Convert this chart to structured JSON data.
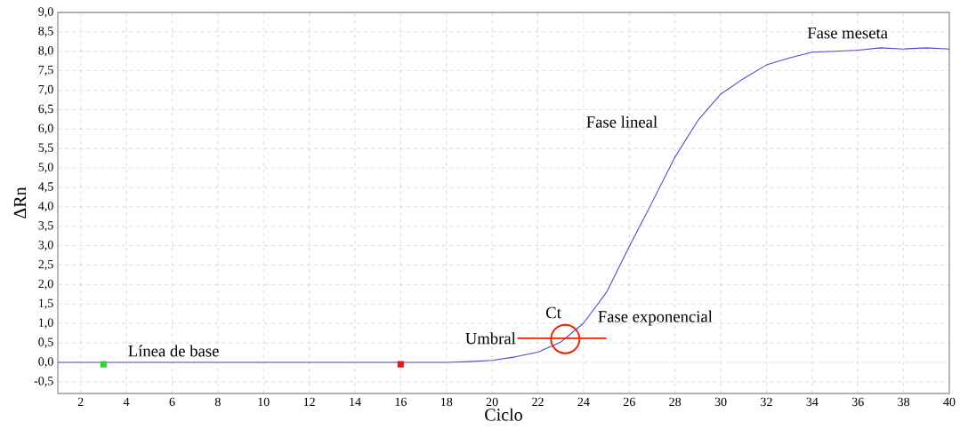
{
  "chart_data": {
    "type": "line",
    "xlabel": "Ciclo",
    "ylabel": "ΔRn",
    "xlim": [
      1,
      40
    ],
    "ylim": [
      -0.8,
      9.0
    ],
    "xticks": [
      2,
      4,
      6,
      8,
      10,
      12,
      14,
      16,
      18,
      20,
      22,
      24,
      26,
      28,
      30,
      32,
      34,
      36,
      38,
      40
    ],
    "yticks": [
      {
        "value": -0.5,
        "label": "-0,5"
      },
      {
        "value": 0,
        "label": "0,0"
      },
      {
        "value": 0.5,
        "label": "0,5"
      },
      {
        "value": 1,
        "label": "1,0"
      },
      {
        "value": 1.5,
        "label": "1,5"
      },
      {
        "value": 2,
        "label": "2,0"
      },
      {
        "value": 2.5,
        "label": "2,5"
      },
      {
        "value": 3,
        "label": "3,0"
      },
      {
        "value": 3.5,
        "label": "3,5"
      },
      {
        "value": 4,
        "label": "4,0"
      },
      {
        "value": 4.5,
        "label": "4,5"
      },
      {
        "value": 5,
        "label": "5,0"
      },
      {
        "value": 5.5,
        "label": "5,5"
      },
      {
        "value": 6,
        "label": "6,0"
      },
      {
        "value": 6.5,
        "label": "6,5"
      },
      {
        "value": 7,
        "label": "7,0"
      },
      {
        "value": 7.5,
        "label": "7,5"
      },
      {
        "value": 8,
        "label": "8,0"
      },
      {
        "value": 8.5,
        "label": "8,5"
      },
      {
        "value": 9,
        "label": "9,0"
      }
    ],
    "grid": true,
    "x": [
      1,
      2,
      3,
      4,
      5,
      6,
      7,
      8,
      9,
      10,
      11,
      12,
      13,
      14,
      15,
      16,
      17,
      18,
      19,
      20,
      21,
      22,
      23,
      24,
      25,
      26,
      27,
      28,
      29,
      30,
      31,
      32,
      33,
      34,
      35,
      36,
      37,
      38,
      39,
      40
    ],
    "series": [
      {
        "color": "#4b4bcc",
        "marker": "none",
        "values": [
          0,
          0,
          0,
          0,
          0,
          0,
          0,
          0,
          0,
          0,
          0,
          0,
          0,
          0,
          0,
          0,
          0,
          0,
          0.02,
          0.05,
          0.14,
          0.26,
          0.52,
          1.01,
          1.8,
          2.98,
          4.12,
          5.28,
          6.22,
          6.9,
          7.3,
          7.65,
          7.83,
          7.98,
          8.0,
          8.03,
          8.09,
          8.06,
          8.09,
          8.06
        ]
      },
      {
        "type": "line",
        "name": "Umbral",
        "color": "#ee2200",
        "marker": "none",
        "x": [
          21.1,
          25
        ],
        "values": [
          0.62,
          0.62
        ]
      },
      {
        "type": "scatter",
        "name": "Ct",
        "color": "#ee2200",
        "marker": "circle",
        "x": [
          23.2
        ],
        "values": [
          0.6
        ]
      },
      {
        "type": "scatter",
        "color": "#22dd22",
        "marker": "square",
        "x": [
          3
        ],
        "values": [
          -0.05
        ]
      },
      {
        "type": "scatter",
        "color": "#ee1111",
        "marker": "square",
        "x": [
          16
        ],
        "values": [
          -0.05
        ]
      }
    ],
    "annotations": [
      "Línea de base",
      "Fase lineal",
      "Fase exponencial",
      "Fase meseta"
    ]
  }
}
